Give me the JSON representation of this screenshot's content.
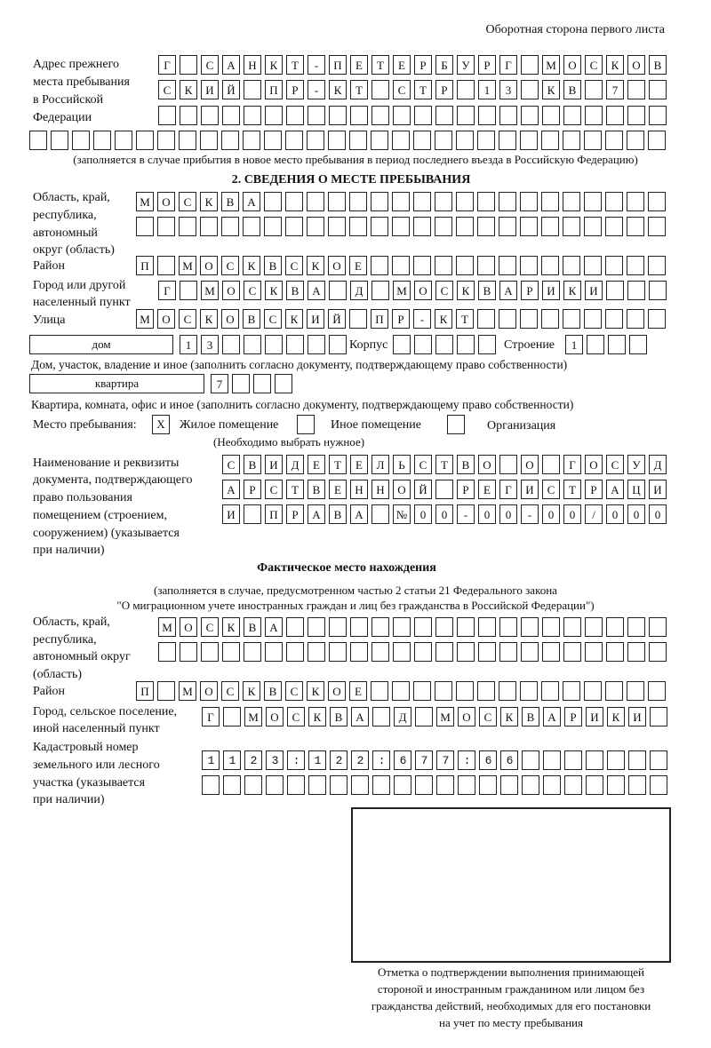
{
  "header": "Оборотная сторона первого листа",
  "prev_address": {
    "label": "Адрес прежнего места пребывания в Российской Федерации",
    "label_lines": [
      "Адрес прежнего",
      "места пребывания",
      "в Российской",
      "Федерации"
    ],
    "rows": [
      "Г САНКТ-ПЕТЕРБУРГ МОСКОВ",
      "СКИЙ ПР-КТ СТР 13 КВ 7",
      ""
    ],
    "row4": "",
    "note": "(заполняется в случае прибытия в новое место пребывания в период последнего въезда в Российскую Федерацию)"
  },
  "section2": {
    "title": "2. СВЕДЕНИЯ О МЕСТЕ ПРЕБЫВАНИЯ",
    "region": {
      "label_lines": [
        "Область, край,",
        "республика,",
        "автономный",
        "округ (область)"
      ],
      "rows": [
        "МОСКВА",
        ""
      ]
    },
    "district": {
      "label": "Район",
      "value": "П МОСКВСКОЕ"
    },
    "city": {
      "label_lines": [
        "Город или другой",
        "населенный пункт"
      ],
      "value": "Г МОСКВА Д МОСКВАРИКИ"
    },
    "street": {
      "label": "Улица",
      "value": "МОСКОВСКИЙ ПР-КТ"
    },
    "house": {
      "type": "дом",
      "value": "13",
      "korpus_label": "Корпус",
      "korpus": "",
      "building_label": "Строение",
      "building": "1",
      "note": "Дом, участок, владение и иное (заполнить согласно документу, подтверждающему право собственности)"
    },
    "apartment": {
      "type": "квартира",
      "value": "7",
      "note": "Квартира, комната, офис и иное (заполнить согласно документу, подтверждающему право собственности)"
    },
    "place": {
      "label": "Место пребывания:",
      "options": [
        {
          "label": "Жилое помещение",
          "mark": "X"
        },
        {
          "label": "Иное помещение",
          "mark": ""
        },
        {
          "label": "Организация",
          "mark": ""
        }
      ],
      "note": "(Необходимо выбрать нужное)"
    },
    "document": {
      "label_lines": [
        "Наименование и реквизиты",
        "документа, подтверждающего",
        "право пользования",
        "помещением (строением,",
        "сооружением) (указывается",
        "при наличии)"
      ],
      "rows": [
        "СВИДЕТЕЛЬСТВО О ГОСУД",
        "АРСТВЕННОЙ РЕГИСТРАЦИ",
        "И ПРАВА №00-00-00/000"
      ]
    }
  },
  "actual": {
    "title": "Фактическое место нахождения",
    "note_lines": [
      "(заполняется в случае, предусмотренном частью 2 статьи 21 Федерального закона",
      "\"О миграционном учете иностранных граждан и лиц без гражданства в Российской Федерации\")"
    ],
    "region": {
      "label_lines": [
        "Область, край,",
        "республика,",
        "автономный округ",
        "(область)"
      ],
      "rows": [
        "МОСКВА",
        ""
      ]
    },
    "district": {
      "label": "Район",
      "value": "П МОСКВСКОЕ"
    },
    "city": {
      "label_lines": [
        "Город, сельское поселение,",
        "иной населенный пункт"
      ],
      "value": "Г МОСКВА Д МОСКВАРИКИ"
    },
    "cadastral": {
      "label_lines": [
        "Кадастровый номер",
        "земельного или лесного",
        "участка (указывается",
        "при наличии)"
      ],
      "rows": [
        "1123:122:677:66",
        ""
      ]
    },
    "stamp_caption_lines": [
      "Отметка о подтверждении выполнения принимающей",
      "стороной и иностранным гражданином или лицом без",
      "гражданства действий, необходимых для его постановки",
      "на учет по месту пребывания"
    ]
  }
}
